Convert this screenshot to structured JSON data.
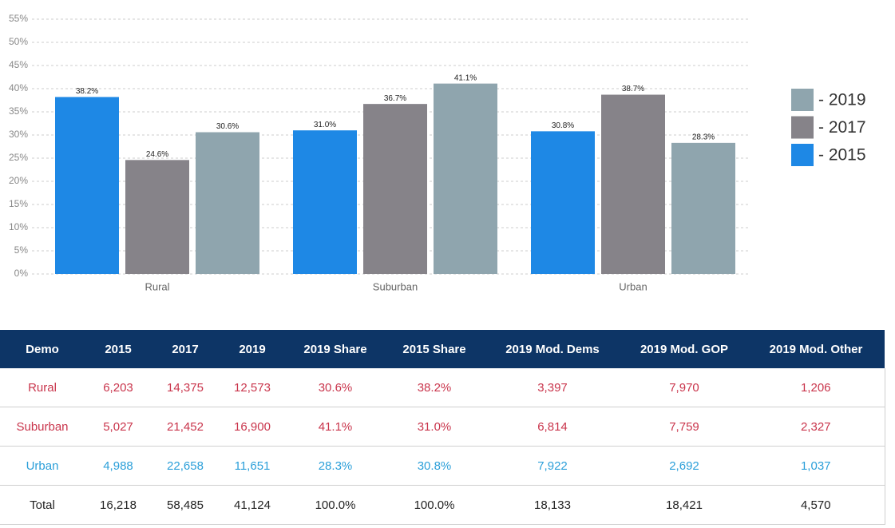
{
  "chart_data": {
    "type": "bar",
    "categories": [
      "Rural",
      "Suburban",
      "Urban"
    ],
    "series": [
      {
        "name": "- 2015",
        "color": "#1e88e5",
        "values": [
          38.2,
          31.0,
          30.8
        ],
        "value_labels": [
          "38.2%",
          "31.0%",
          "30.8%"
        ]
      },
      {
        "name": "- 2017",
        "color": "#868389",
        "values": [
          24.6,
          36.7,
          38.7
        ],
        "value_labels": [
          "24.6%",
          "36.7%",
          "38.7%"
        ]
      },
      {
        "name": "- 2019",
        "color": "#8fa5ae",
        "values": [
          30.6,
          41.1,
          28.3
        ],
        "value_labels": [
          "30.6%",
          "41.1%",
          "28.3%"
        ]
      }
    ],
    "ylim": [
      0,
      55
    ],
    "yticks": [
      {
        "value": 0,
        "label": "0%"
      },
      {
        "value": 5,
        "label": "5%"
      },
      {
        "value": 10,
        "label": "10%"
      },
      {
        "value": 15,
        "label": "15%"
      },
      {
        "value": 20,
        "label": "20%"
      },
      {
        "value": 25,
        "label": "25%"
      },
      {
        "value": 30,
        "label": "30%"
      },
      {
        "value": 35,
        "label": "35%"
      },
      {
        "value": 40,
        "label": "40%"
      },
      {
        "value": 45,
        "label": "45%"
      },
      {
        "value": 50,
        "label": "50%"
      },
      {
        "value": 55,
        "label": "55%"
      }
    ],
    "grid": true,
    "legend": "right"
  },
  "table": {
    "header": [
      "Demo",
      "2015",
      "2017",
      "2019",
      "2019 Share",
      "2015 Share",
      "2019 Mod. Dems",
      "2019 Mod. GOP",
      "2019 Mod. Other"
    ],
    "rows": [
      {
        "color": "#c9344b",
        "cells": [
          "Rural",
          "6,203",
          "14,375",
          "12,573",
          "30.6%",
          "38.2%",
          "3,397",
          "7,970",
          "1,206"
        ]
      },
      {
        "color": "#c9344b",
        "cells": [
          "Suburban",
          "5,027",
          "21,452",
          "16,900",
          "41.1%",
          "31.0%",
          "6,814",
          "7,759",
          "2,327"
        ]
      },
      {
        "color": "#2b9fd9",
        "cells": [
          "Urban",
          "4,988",
          "22,658",
          "11,651",
          "28.3%",
          "30.8%",
          "7,922",
          "2,692",
          "1,037"
        ]
      },
      {
        "color": "#222222",
        "cells": [
          "Total",
          "16,218",
          "58,485",
          "41,124",
          "100.0%",
          "100.0%",
          "18,133",
          "18,421",
          "4,570"
        ]
      }
    ]
  }
}
